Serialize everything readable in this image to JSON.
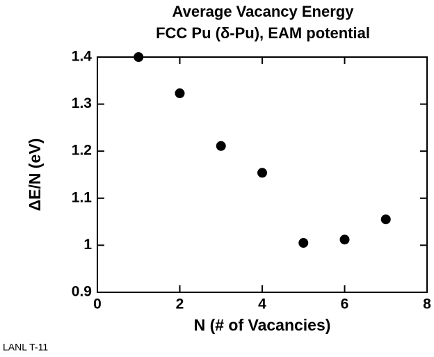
{
  "chart_data": {
    "type": "scatter",
    "title": "Average  Vacancy  Energy",
    "subtitle": "FCC Pu (δ-Pu),  EAM  potential",
    "xlabel": "N (# of Vacancies)",
    "ylabel": "ΔE/N (eV)",
    "annotation": "LANL T-11",
    "x": [
      1,
      2,
      3,
      4,
      5,
      6,
      7
    ],
    "values": [
      1.4,
      1.323,
      1.211,
      1.154,
      1.005,
      1.012,
      1.055
    ],
    "color": "#000000",
    "xlim": [
      0,
      8
    ],
    "xticks": [
      0,
      2,
      4,
      6,
      8
    ],
    "ylim": [
      0.9,
      1.4
    ],
    "yticks": [
      0.9,
      1,
      1.1,
      1.2,
      1.3,
      1.4
    ]
  }
}
